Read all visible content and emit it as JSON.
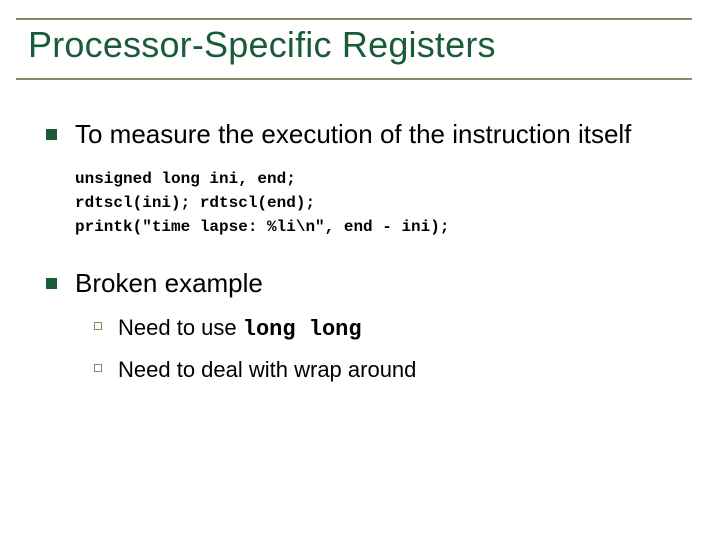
{
  "slide": {
    "title": "Processor-Specific Registers",
    "title_color": "#1a5c3a",
    "border_color": "#8a8a5a",
    "background_color": "#ffffff",
    "title_fontsize": 36,
    "body_fontsize": 26,
    "sub_fontsize": 22,
    "code_fontsize": 16,
    "bullets": [
      {
        "text": "To measure the execution of the instruction itself",
        "code": "unsigned long ini, end;\nrdtscl(ini); rdtscl(end);\nprintk(\"time lapse: %li\\n\", end - ini);"
      },
      {
        "text": "Broken example",
        "sub": [
          {
            "prefix": "Need to use ",
            "mono": "long long"
          },
          {
            "prefix": "Need to deal with wrap around",
            "mono": ""
          }
        ]
      }
    ]
  }
}
